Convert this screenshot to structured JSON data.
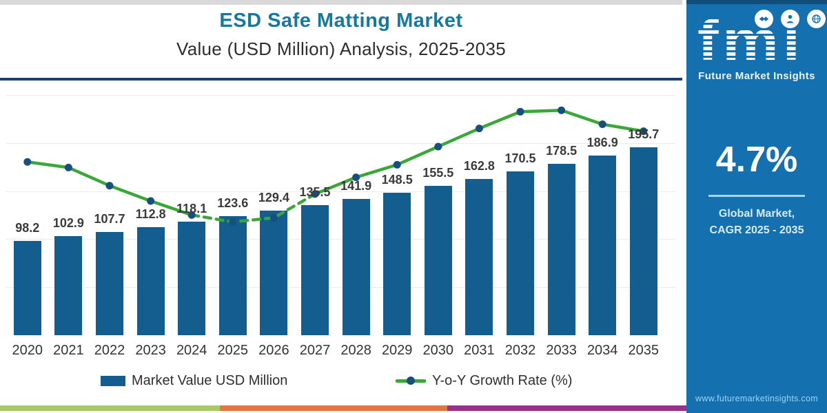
{
  "header": {
    "title": "ESD Safe Matting Market",
    "subtitle": "Value (USD Million) Analysis, 2025-2035"
  },
  "chart_data": {
    "type": "bar+line",
    "title": "ESD Safe Matting Market Value (USD Million) Analysis, 2025-2035",
    "categories": [
      "2020",
      "2021",
      "2022",
      "2023",
      "2024",
      "2025",
      "2026",
      "2027",
      "2028",
      "2029",
      "2030",
      "2031",
      "2032",
      "2033",
      "2034",
      "2035"
    ],
    "series": [
      {
        "name": "Market Value USD Million",
        "type": "bar",
        "color": "#135e8f",
        "values": [
          98.2,
          102.9,
          107.7,
          112.8,
          118.1,
          123.6,
          129.4,
          135.5,
          141.9,
          148.5,
          155.5,
          162.8,
          170.5,
          178.5,
          186.9,
          195.7
        ]
      },
      {
        "name": "Y-o-Y Growth Rate (%)",
        "type": "line",
        "color": "#3aa838",
        "marker_color": "#174f7e",
        "values_estimated_from_plot": true,
        "values": [
          4.63,
          4.59,
          4.46,
          4.35,
          4.25,
          4.2,
          4.23,
          4.4,
          4.52,
          4.61,
          4.74,
          4.87,
          4.99,
          5.0,
          4.9,
          4.85
        ],
        "dashed_segment_categories": [
          "2024",
          "2027"
        ]
      }
    ],
    "value_labels_on_bars": true,
    "ylim_bars": [
      0,
      250
    ],
    "ylim_growth": [
      4.0,
      5.1
    ],
    "grid": "horizontal, light, unlabeled",
    "legend_position": "bottom"
  },
  "legend": {
    "bar_label": "Market Value USD Million",
    "line_label": "Y-o-Y Growth Rate (%)"
  },
  "sidebar": {
    "logo_text": "fmi",
    "logo_caption": "Future Market Insights",
    "icons": [
      "handshake-icon",
      "person-icon",
      "globe-icon"
    ],
    "cagr_value": "4.7%",
    "cagr_caption_line1": "Global Market,",
    "cagr_caption_line2": "CAGR 2025 - 2035",
    "website": "www.futuremarketinsights.com",
    "bg_color": "#1470ae"
  },
  "footer": {
    "stripe_colors": [
      "#a9c965",
      "#e2763f",
      "#9b3088"
    ]
  }
}
